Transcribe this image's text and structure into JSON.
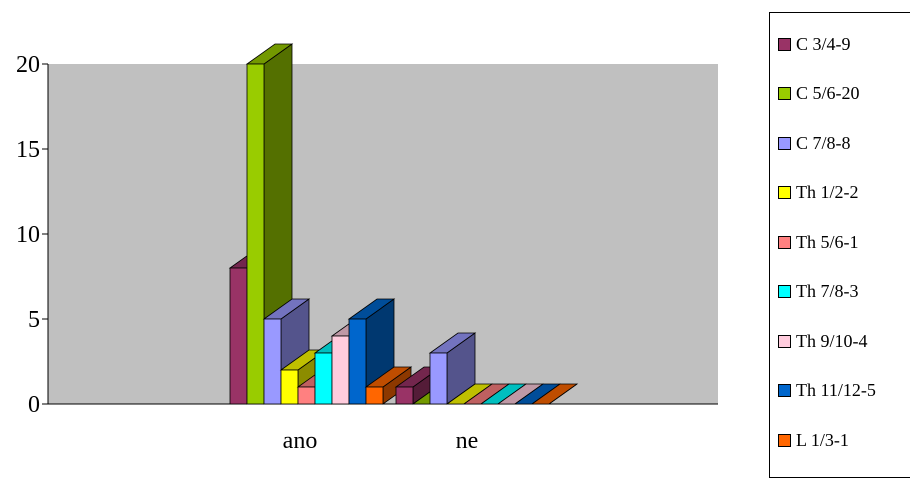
{
  "chart_data": {
    "type": "bar",
    "categories": [
      "ano",
      "ne"
    ],
    "series": [
      {
        "name": "C 3/4-9",
        "color": "#993366",
        "values": [
          8,
          1
        ]
      },
      {
        "name": "C 5/6-20",
        "color": "#99cc00",
        "values": [
          20,
          0
        ]
      },
      {
        "name": "C 7/8-8",
        "color": "#9999ff",
        "values": [
          5,
          3
        ]
      },
      {
        "name": "Th 1/2-2",
        "color": "#ffff00",
        "values": [
          2,
          0
        ]
      },
      {
        "name": "Th 5/6-1",
        "color": "#ff8080",
        "values": [
          1,
          0
        ]
      },
      {
        "name": "Th 7/8-3",
        "color": "#00ffff",
        "values": [
          3,
          0
        ]
      },
      {
        "name": "Th 9/10-4",
        "color": "#ffccdd",
        "values": [
          4,
          0
        ]
      },
      {
        "name": "Th 11/12-5",
        "color": "#0066cc",
        "values": [
          5,
          0
        ]
      },
      {
        "name": "L 1/3-1",
        "color": "#ff6600",
        "values": [
          1,
          0
        ]
      }
    ],
    "yticks": [
      0,
      5,
      10,
      15,
      20
    ],
    "ylim": [
      0,
      20
    ],
    "title": "",
    "xlabel": "",
    "ylabel": "",
    "grid": false,
    "plot_background": "#c0c0c0",
    "legend_position": "right",
    "projection": "3d-bars"
  }
}
